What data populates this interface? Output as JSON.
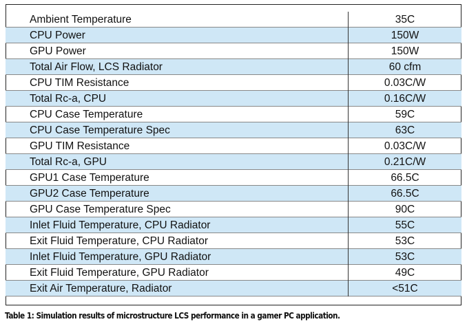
{
  "table": {
    "rows": [
      [
        "Ambient Temperature",
        "35C"
      ],
      [
        "CPU Power",
        "150W"
      ],
      [
        "GPU Power",
        "150W"
      ],
      [
        "Total Air Flow, LCS Radiator",
        "60 cfm"
      ],
      [
        "CPU TIM Resistance",
        "0.03C/W"
      ],
      [
        "Total Rc-a, CPU",
        "0.16C/W"
      ],
      [
        "CPU Case Temperature",
        "59C"
      ],
      [
        "CPU Case Temperature Spec",
        "63C"
      ],
      [
        "GPU TIM Resistance",
        "0.03C/W"
      ],
      [
        "Total Rc-a, GPU",
        "0.21C/W"
      ],
      [
        "GPU1 Case Temperature",
        "66.5C"
      ],
      [
        "GPU2 Case Temperature",
        "66.5C"
      ],
      [
        "GPU Case Temperature Spec",
        "90C"
      ],
      [
        "Inlet Fluid Temperature, CPU Radiator",
        "55C"
      ],
      [
        "Exit Fluid Temperature, CPU Radiator",
        "53C"
      ],
      [
        "Inlet Fluid Temperature, GPU Radiator",
        "53C"
      ],
      [
        "Exit Fluid Temperature, GPU Radiator",
        "49C"
      ],
      [
        "Exit Air Temperature, Radiator",
        "<51C"
      ]
    ]
  },
  "caption": "Table 1: Simulation results of microstructure LCS performance in a gamer PC application."
}
